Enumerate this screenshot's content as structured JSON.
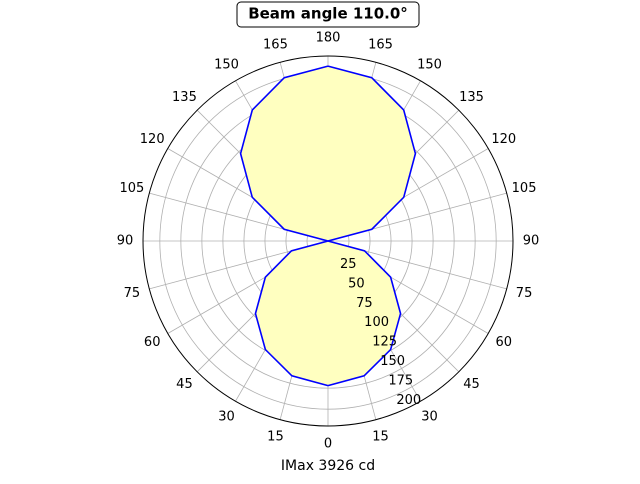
{
  "chart_data": {
    "type": "polar",
    "title": "Beam angle 110.0°",
    "xlabel": "IMax 3926 cd",
    "theta": [
      0,
      15,
      30,
      45,
      60,
      75,
      90,
      105,
      120,
      135,
      150,
      165,
      180
    ],
    "series": [
      {
        "color": "#0000ff",
        "fill": "#ffffc0",
        "values": [
          172,
          166,
          149,
          122,
          86,
          45,
          0,
          54,
          104,
          147,
          180,
          201,
          208
        ]
      }
    ],
    "rlim": [
      0,
      220
    ],
    "rticks": [
      25,
      50,
      75,
      100,
      125,
      150,
      175,
      200
    ],
    "thetaticks": [
      0,
      15,
      30,
      45,
      60,
      75,
      90,
      105,
      120,
      135,
      150,
      165,
      180
    ],
    "grid": true
  }
}
